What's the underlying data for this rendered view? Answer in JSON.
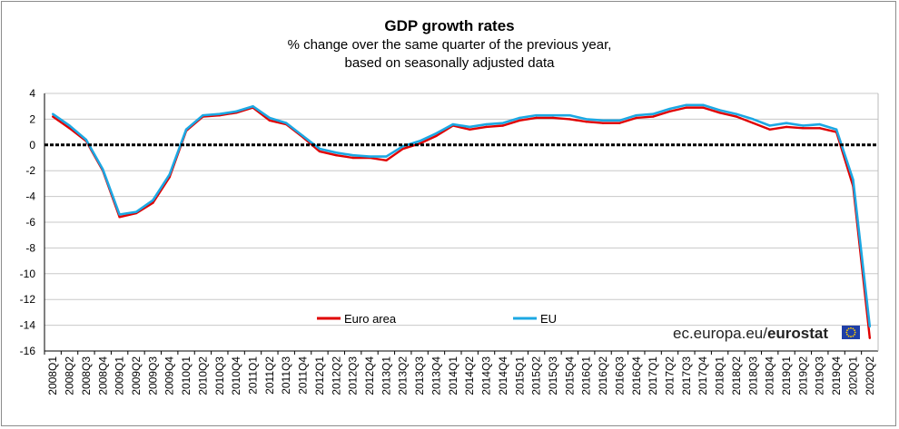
{
  "title": "GDP growth rates",
  "subtitle_line1": "% change over the same quarter of the previous year,",
  "subtitle_line2": "based on seasonally adjusted data",
  "brand_prefix": "ec.europa.eu/",
  "brand_name": "eurostat",
  "flag_icon": "eu-flag-icon",
  "colors": {
    "euro_area": "#e00000",
    "eu": "#1ca8e3",
    "zero_line": "#000000",
    "grid": "#c8c8c8"
  },
  "chart_data": {
    "type": "line",
    "title": "GDP growth rates",
    "subtitle": "% change over the same quarter of the previous year, based on seasonally adjusted data",
    "xlabel": "",
    "ylabel": "",
    "ylim": [
      -16,
      4
    ],
    "yticks": [
      4,
      2,
      0,
      -2,
      -4,
      -6,
      -8,
      -10,
      -12,
      -14,
      -16
    ],
    "grid": "horizontal",
    "legend_position": "bottom-center",
    "categories": [
      "2008Q1",
      "2008Q2",
      "2008Q3",
      "2008Q4",
      "2009Q1",
      "2009Q2",
      "2009Q3",
      "2009Q4",
      "2010Q1",
      "2010Q2",
      "2010Q3",
      "2010Q4",
      "2011Q1",
      "2011Q2",
      "2011Q3",
      "2011Q4",
      "2012Q1",
      "2012Q2",
      "2012Q3",
      "2012Q4",
      "2013Q1",
      "2013Q2",
      "2013Q3",
      "2013Q4",
      "2014Q1",
      "2014Q2",
      "2014Q3",
      "2014Q4",
      "2015Q1",
      "2015Q2",
      "2015Q3",
      "2015Q4",
      "2016Q1",
      "2016Q2",
      "2016Q3",
      "2016Q4",
      "2017Q1",
      "2017Q2",
      "2017Q3",
      "2017Q4",
      "2018Q1",
      "2018Q2",
      "2018Q3",
      "2018Q4",
      "2019Q1",
      "2019Q2",
      "2019Q3",
      "2019Q4",
      "2020Q1",
      "2020Q2"
    ],
    "series": [
      {
        "name": "Euro area",
        "color": "#e00000",
        "values": [
          2.2,
          1.3,
          0.3,
          -2.0,
          -5.6,
          -5.3,
          -4.5,
          -2.5,
          1.1,
          2.2,
          2.3,
          2.5,
          2.9,
          1.9,
          1.6,
          0.6,
          -0.5,
          -0.8,
          -1.0,
          -1.0,
          -1.2,
          -0.3,
          0.1,
          0.7,
          1.5,
          1.2,
          1.4,
          1.5,
          1.9,
          2.1,
          2.1,
          2.0,
          1.8,
          1.7,
          1.7,
          2.1,
          2.2,
          2.6,
          2.9,
          2.9,
          2.5,
          2.2,
          1.7,
          1.2,
          1.4,
          1.3,
          1.3,
          1.0,
          -3.2,
          -15.0
        ]
      },
      {
        "name": "EU",
        "color": "#1ca8e3",
        "values": [
          2.4,
          1.5,
          0.4,
          -1.9,
          -5.4,
          -5.2,
          -4.3,
          -2.3,
          1.2,
          2.3,
          2.4,
          2.6,
          3.0,
          2.1,
          1.7,
          0.7,
          -0.3,
          -0.6,
          -0.8,
          -0.9,
          -0.9,
          -0.1,
          0.3,
          0.9,
          1.6,
          1.4,
          1.6,
          1.7,
          2.1,
          2.3,
          2.3,
          2.3,
          2.0,
          1.9,
          1.9,
          2.3,
          2.4,
          2.8,
          3.1,
          3.1,
          2.7,
          2.4,
          2.0,
          1.5,
          1.7,
          1.5,
          1.6,
          1.2,
          -2.7,
          -14.1
        ]
      }
    ]
  }
}
